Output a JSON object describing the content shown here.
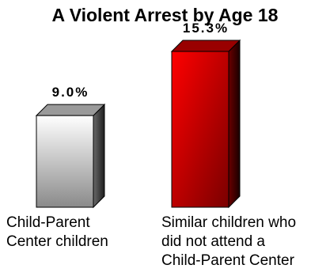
{
  "chart_data": {
    "type": "bar",
    "title": "A Violent Arrest by Age 18",
    "categories": [
      "Child-Parent\nCenter children",
      "Similar children who\ndid not attend a\nChild-Parent Center"
    ],
    "values": [
      9.0,
      15.3
    ],
    "value_labels": [
      "9.0%",
      "15.3%"
    ],
    "ylim": [
      0,
      16
    ],
    "grid": false,
    "legend": "none",
    "colors": {
      "bar_0": "#d9d9d9",
      "bar_1": "#cc0000"
    }
  }
}
